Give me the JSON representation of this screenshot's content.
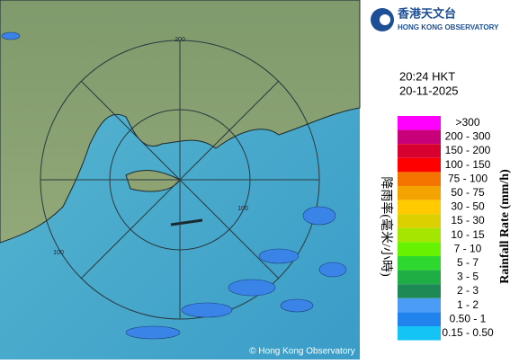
{
  "header": {
    "logo_chinese": "香港天文台",
    "logo_english": "HONG KONG OBSERVATORY"
  },
  "timestamp": {
    "time": "20:24 HKT",
    "date": "20-11-2025"
  },
  "map": {
    "ring_labels": [
      "200",
      "100",
      "100"
    ],
    "copyright": "© Hong Kong Observatory"
  },
  "legend": {
    "title_chinese": "降雨率(毫米/小時)",
    "title_english": "Rainfall Rate (mm/h)",
    "items": [
      {
        "label": ">300",
        "color": "#ff00ff"
      },
      {
        "label": "200 - 300",
        "color": "#c8007a"
      },
      {
        "label": "150 - 200",
        "color": "#d8002e"
      },
      {
        "label": "100 - 150",
        "color": "#ff0000"
      },
      {
        "label": "75 - 100",
        "color": "#f57400"
      },
      {
        "label": "50 - 75",
        "color": "#f4a400"
      },
      {
        "label": "30 - 50",
        "color": "#ffcb00"
      },
      {
        "label": "15 - 30",
        "color": "#dcd000"
      },
      {
        "label": "10 - 15",
        "color": "#a4e600"
      },
      {
        "label": "7 - 10",
        "color": "#66f200"
      },
      {
        "label": "5 - 7",
        "color": "#2ed82e"
      },
      {
        "label": "3 - 5",
        "color": "#1fae43"
      },
      {
        "label": "2 - 3",
        "color": "#1d8a55"
      },
      {
        "label": "1 - 2",
        "color": "#4a9cf4"
      },
      {
        "label": "0.50 - 1",
        "color": "#2184ee"
      },
      {
        "label": "0.15 - 0.50",
        "color": "#14c4f4"
      }
    ]
  }
}
